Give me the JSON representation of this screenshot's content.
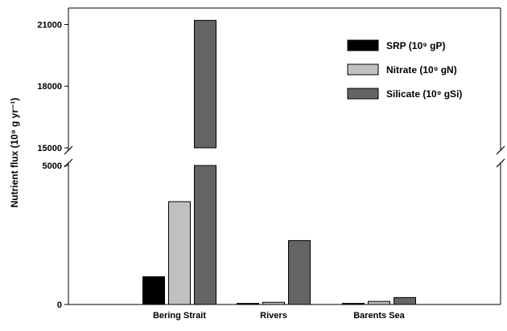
{
  "chart_data": {
    "type": "bar",
    "ylabel": "Nutrient flux (10⁹ g yr⁻¹)",
    "categories": [
      "Bering Strait",
      "Rivers",
      "Barents Sea"
    ],
    "series": [
      {
        "name": "SRP (10⁹ gP)",
        "color": "#000000",
        "values": [
          1000,
          40,
          40
        ]
      },
      {
        "name": "Nitrate (10⁹ gN)",
        "color": "#c0c0c0",
        "values": [
          3700,
          80,
          110
        ]
      },
      {
        "name": "Silicate (10⁹ gSi)",
        "color": "#646464",
        "values": [
          21200,
          2300,
          250
        ]
      }
    ],
    "axis_break": {
      "lower_range": [
        0,
        5000
      ],
      "upper_range": [
        15000,
        21800
      ]
    },
    "yticks_lower": [
      0,
      5000
    ],
    "yticks_upper": [
      15000,
      18000,
      21000
    ],
    "ytick_labels_lower": [
      "0",
      "5000"
    ],
    "ytick_labels_upper": [
      "15000",
      "18000",
      "21000"
    ],
    "legend_position": "top-right",
    "grid": false
  }
}
